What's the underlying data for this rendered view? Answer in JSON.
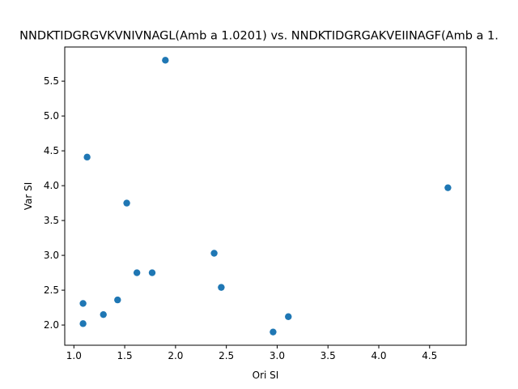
{
  "chart_data": {
    "type": "scatter",
    "title": "NNDKTIDGRGVKVNIVNAGL(Amb a 1.0201) vs. NNDKTIDGRGAKVEIINAGF(Amb a 1.",
    "xlabel": "Ori SI",
    "ylabel": "Var SI",
    "xlim": [
      0.91,
      4.86
    ],
    "ylim": [
      1.71,
      5.99
    ],
    "xticks": [
      1.0,
      1.5,
      2.0,
      2.5,
      3.0,
      3.5,
      4.0,
      4.5
    ],
    "xtick_labels": [
      "1.0",
      "1.5",
      "2.0",
      "2.5",
      "3.0",
      "3.5",
      "4.0",
      "4.5"
    ],
    "yticks": [
      2.0,
      2.5,
      3.0,
      3.5,
      4.0,
      4.5,
      5.0,
      5.5
    ],
    "ytick_labels": [
      "2.0",
      "2.5",
      "3.0",
      "3.5",
      "4.0",
      "4.5",
      "5.0",
      "5.5"
    ],
    "grid": false,
    "marker_color": "#1f77b4",
    "points": [
      {
        "x": 1.9,
        "y": 5.8
      },
      {
        "x": 1.13,
        "y": 4.41
      },
      {
        "x": 1.52,
        "y": 3.75
      },
      {
        "x": 4.68,
        "y": 3.97
      },
      {
        "x": 2.38,
        "y": 3.03
      },
      {
        "x": 1.62,
        "y": 2.75
      },
      {
        "x": 1.77,
        "y": 2.75
      },
      {
        "x": 2.45,
        "y": 2.54
      },
      {
        "x": 1.09,
        "y": 2.31
      },
      {
        "x": 1.43,
        "y": 2.36
      },
      {
        "x": 1.29,
        "y": 2.15
      },
      {
        "x": 1.09,
        "y": 2.02
      },
      {
        "x": 3.11,
        "y": 2.12
      },
      {
        "x": 2.96,
        "y": 1.9
      }
    ]
  }
}
